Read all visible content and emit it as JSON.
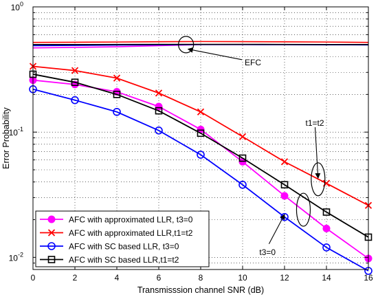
{
  "chart_data": {
    "type": "line",
    "xlabel": "Transmisssion channel SNR (dB)",
    "ylabel": "Error Probability",
    "xlim": [
      0,
      16
    ],
    "ylim": [
      0.008,
      1
    ],
    "yscale": "log",
    "grid": true,
    "legend_position": "bottom-left",
    "x_ticks": [
      "0",
      "2",
      "4",
      "6",
      "8",
      "10",
      "12",
      "14",
      "16"
    ],
    "y_ticks": [
      {
        "value": 1,
        "base": "10",
        "exp": "0"
      },
      {
        "value": 0.1,
        "base": "10",
        "exp": "-1"
      },
      {
        "value": 0.01,
        "base": "10",
        "exp": "-2"
      }
    ],
    "x": [
      0,
      2,
      4,
      6,
      8,
      10,
      12,
      14,
      16
    ],
    "series": [
      {
        "name": "AFC with approximated LLR, t3=0",
        "color": "#ff00ff",
        "marker": "filled-circle",
        "values": [
          0.26,
          0.24,
          0.21,
          0.16,
          0.105,
          0.058,
          0.031,
          0.017,
          0.0098
        ]
      },
      {
        "name": "AFC with approximated LLR,t1=t2",
        "color": "#ff0000",
        "marker": "x",
        "values": [
          0.335,
          0.31,
          0.27,
          0.205,
          0.145,
          0.092,
          0.058,
          0.039,
          0.026
        ]
      },
      {
        "name": "AFC with SC based LLR, t3=0",
        "color": "#0000ff",
        "marker": "open-circle",
        "values": [
          0.22,
          0.18,
          0.145,
          0.103,
          0.066,
          0.038,
          0.021,
          0.012,
          0.0078
        ]
      },
      {
        "name": "AFC with SC based LLR,t1=t2",
        "color": "#000000",
        "marker": "open-square",
        "values": [
          0.29,
          0.25,
          0.2,
          0.148,
          0.098,
          0.062,
          0.038,
          0.023,
          0.0145
        ]
      }
    ],
    "efc_lines": [
      {
        "color": "#ff00ff",
        "values": [
          0.47,
          0.475,
          0.48,
          0.49,
          0.5,
          0.5,
          0.5,
          0.5,
          0.5
        ]
      },
      {
        "color": "#ff0000",
        "values": [
          0.52,
          0.522,
          0.524,
          0.527,
          0.529,
          0.528,
          0.526,
          0.524,
          0.52
        ]
      },
      {
        "color": "#0000ff",
        "values": [
          0.49,
          0.492,
          0.495,
          0.498,
          0.5,
          0.5,
          0.499,
          0.498,
          0.497
        ]
      },
      {
        "color": "#000000",
        "values": [
          0.5,
          0.5,
          0.501,
          0.502,
          0.502,
          0.502,
          0.501,
          0.5,
          0.5
        ]
      }
    ],
    "annotations": [
      {
        "text": "EFC",
        "x": 10.1,
        "y": 0.36,
        "arrow_to": [
          7.4,
          0.46
        ],
        "ellipse": [
          7.3,
          0.5
        ]
      },
      {
        "text": "t1=t2",
        "x": 13.0,
        "y": 0.118,
        "arrow_to": [
          13.6,
          0.043
        ],
        "ellipse": [
          13.6,
          0.042
        ]
      },
      {
        "text": "t3=0",
        "x": 10.8,
        "y": 0.011,
        "arrow_to": [
          12.0,
          0.022
        ],
        "ellipse": [
          12.9,
          0.024
        ]
      }
    ]
  }
}
